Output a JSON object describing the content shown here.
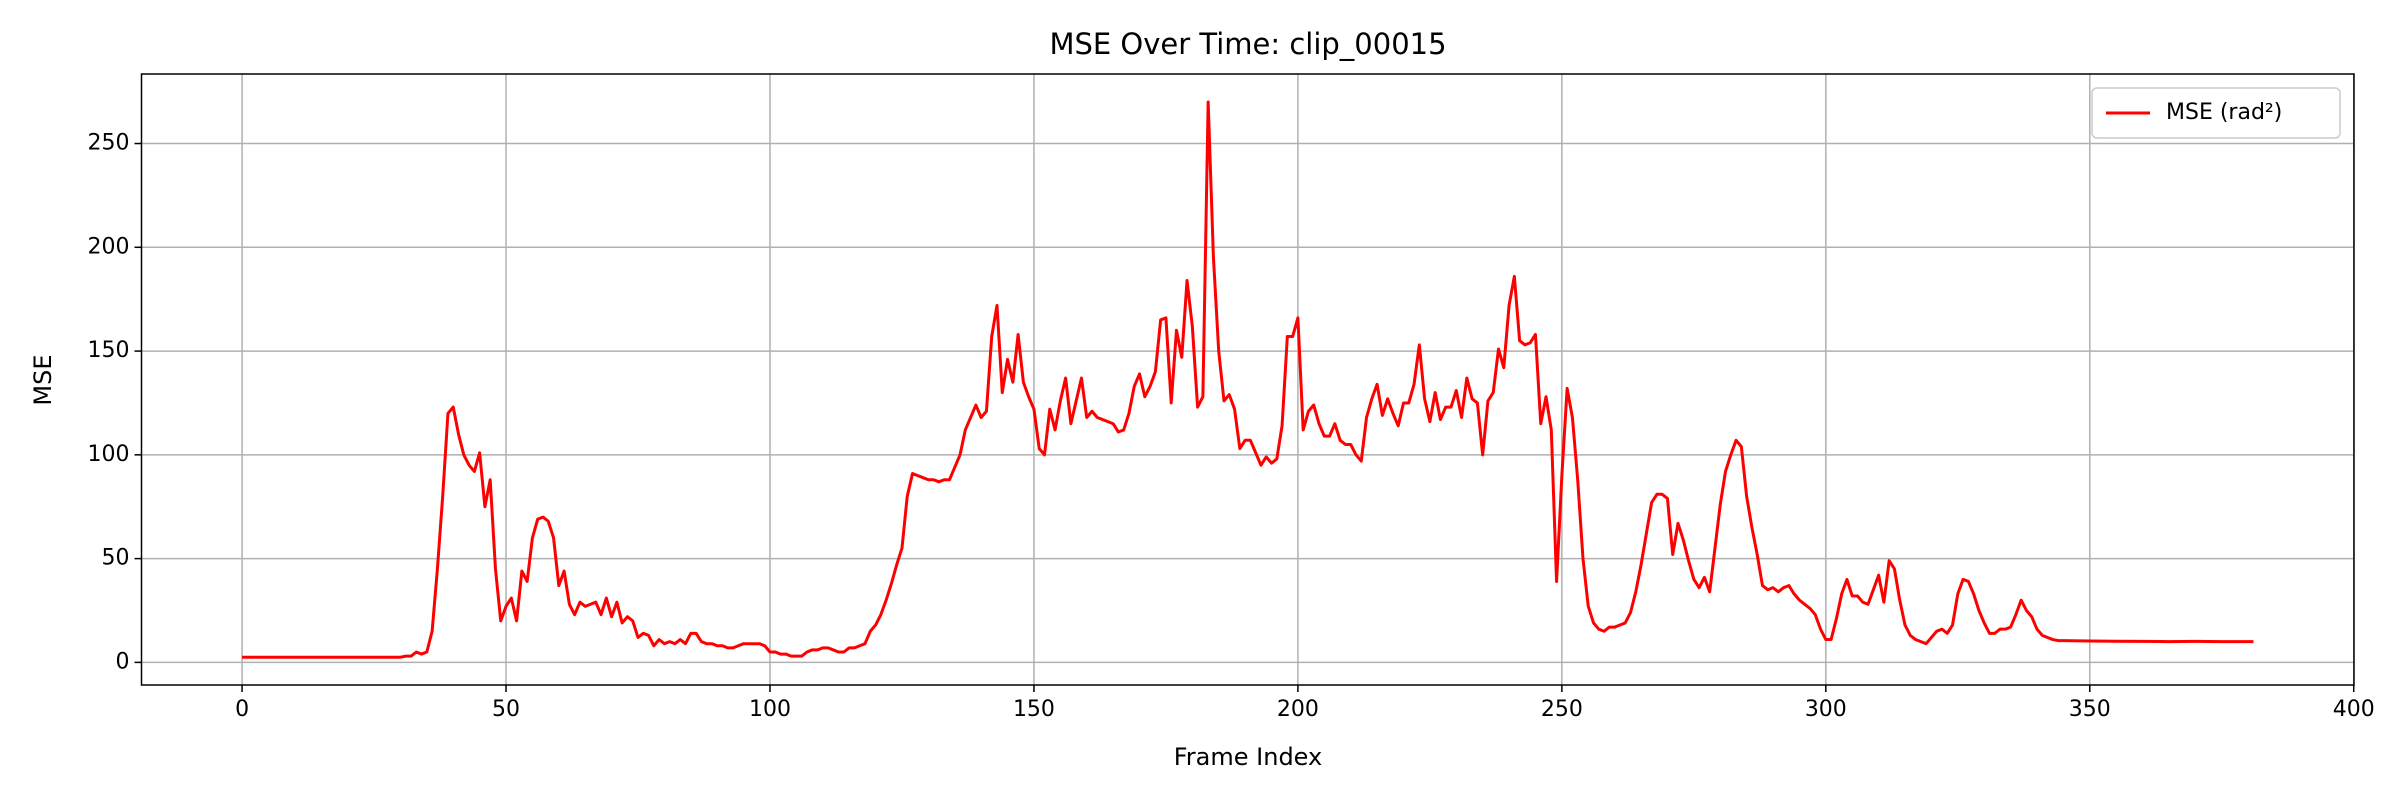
{
  "chart_data": {
    "type": "line",
    "title": "MSE Over Time: clip_00015",
    "x_label": "Frame Index",
    "y_label": "MSE",
    "x": [
      0,
      30,
      31,
      32,
      33,
      34,
      35,
      36,
      37,
      38,
      39,
      40,
      41,
      42,
      43,
      44,
      45,
      46,
      47,
      48,
      49,
      50,
      51,
      52,
      53,
      54,
      55,
      56,
      57,
      58,
      59,
      60,
      61,
      62,
      63,
      64,
      65,
      66,
      67,
      68,
      69,
      70,
      71,
      72,
      73,
      74,
      75,
      76,
      77,
      78,
      79,
      80,
      81,
      82,
      83,
      84,
      85,
      86,
      87,
      88,
      89,
      90,
      91,
      92,
      93,
      94,
      95,
      96,
      97,
      98,
      99,
      100,
      101,
      102,
      103,
      104,
      105,
      106,
      107,
      108,
      109,
      110,
      111,
      112,
      113,
      114,
      115,
      116,
      117,
      118,
      119,
      120,
      121,
      122,
      123,
      124,
      125,
      126,
      127,
      128,
      129,
      130,
      131,
      132,
      133,
      134,
      135,
      136,
      137,
      138,
      139,
      140,
      141,
      142,
      143,
      144,
      145,
      146,
      147,
      148,
      149,
      150,
      151,
      152,
      153,
      154,
      155,
      156,
      157,
      158,
      159,
      160,
      161,
      162,
      163,
      164,
      165,
      166,
      167,
      168,
      169,
      170,
      171,
      172,
      173,
      174,
      175,
      176,
      177,
      178,
      179,
      180,
      181,
      182,
      183,
      184,
      185,
      186,
      187,
      188,
      189,
      190,
      191,
      192,
      193,
      194,
      195,
      196,
      197,
      198,
      199,
      200,
      201,
      202,
      203,
      204,
      205,
      206,
      207,
      208,
      209,
      210,
      211,
      212,
      213,
      214,
      215,
      216,
      217,
      218,
      219,
      220,
      221,
      222,
      223,
      224,
      225,
      226,
      227,
      228,
      229,
      230,
      231,
      232,
      233,
      234,
      235,
      236,
      237,
      238,
      239,
      240,
      241,
      242,
      243,
      244,
      245,
      246,
      247,
      248,
      249,
      250,
      251,
      252,
      253,
      254,
      255,
      256,
      257,
      258,
      259,
      260,
      261,
      262,
      263,
      264,
      265,
      266,
      267,
      268,
      269,
      270,
      271,
      272,
      273,
      274,
      275,
      276,
      277,
      278,
      279,
      280,
      281,
      282,
      283,
      284,
      285,
      286,
      287,
      288,
      289,
      290,
      291,
      292,
      293,
      294,
      295,
      296,
      297,
      298,
      299,
      300,
      301,
      302,
      303,
      304,
      305,
      306,
      307,
      308,
      309,
      310,
      311,
      312,
      313,
      314,
      315,
      316,
      317,
      318,
      319,
      320,
      321,
      322,
      323,
      324,
      325,
      326,
      327,
      328,
      329,
      330,
      331,
      332,
      333,
      334,
      335,
      336,
      337,
      338,
      339,
      340,
      341,
      342,
      343,
      344,
      345,
      350,
      355,
      360,
      365,
      370,
      375,
      381
    ],
    "series": [
      {
        "name": "MSE (rad²)",
        "color": "#ff0000",
        "values": [
          2.5,
          2.5,
          3,
          3,
          5,
          4,
          5,
          15,
          45,
          80,
          120,
          123,
          110,
          100,
          95,
          92,
          101,
          75,
          88,
          45,
          20,
          27,
          31,
          20,
          44,
          39,
          60,
          69,
          70,
          68,
          60,
          37,
          44,
          28,
          23,
          29,
          27,
          28,
          29,
          23,
          31,
          22,
          29,
          19,
          22,
          20,
          12,
          14,
          13,
          8,
          11,
          9,
          10,
          9,
          11,
          9,
          14,
          14,
          10,
          9,
          9,
          8,
          8,
          7,
          7,
          8,
          9,
          9,
          9,
          9,
          8,
          5,
          5,
          4,
          4,
          3,
          3,
          3,
          5,
          6,
          6,
          7,
          7,
          6,
          5,
          5,
          7,
          7,
          8,
          9,
          15,
          18,
          23,
          30,
          38,
          47,
          55,
          80,
          91,
          90,
          89,
          88,
          88,
          87,
          88,
          88,
          94,
          100,
          112,
          118,
          124,
          118,
          121,
          157,
          172,
          130,
          146,
          135,
          158,
          135,
          128,
          122,
          103,
          100,
          122,
          112,
          126,
          137,
          115,
          126,
          137,
          118,
          121,
          118,
          117,
          116,
          115,
          111,
          112,
          120,
          133,
          139,
          128,
          133,
          140,
          165,
          166,
          125,
          160,
          147,
          184,
          162,
          123,
          128,
          270,
          195,
          150,
          126,
          129,
          122,
          103,
          107,
          107,
          101,
          95,
          99,
          96,
          98,
          114,
          157,
          157,
          166,
          112,
          121,
          124,
          115,
          109,
          109,
          115,
          107,
          105,
          105,
          100,
          97,
          118,
          127,
          134,
          119,
          127,
          120,
          114,
          125,
          125,
          134,
          153,
          127,
          116,
          130,
          117,
          123,
          123,
          131,
          118,
          137,
          127,
          125,
          100,
          126,
          130,
          151,
          142,
          172,
          186,
          155,
          153,
          154,
          158,
          115,
          128,
          112,
          39,
          90,
          132,
          118,
          88,
          50,
          27,
          19,
          16,
          15,
          17,
          17,
          18,
          19,
          24,
          34,
          47,
          62,
          77,
          81,
          81,
          79,
          52,
          67,
          59,
          49,
          40,
          36,
          41,
          34,
          55,
          76,
          92,
          100,
          107,
          104,
          80,
          65,
          52,
          37,
          35,
          36,
          34,
          36,
          37,
          33,
          30,
          28,
          26,
          23,
          16,
          11,
          11,
          21,
          33,
          40,
          32,
          32,
          29,
          28,
          35,
          42,
          29,
          49,
          45,
          30,
          18,
          13,
          11,
          10,
          9,
          12,
          15,
          16,
          14,
          18,
          33,
          40,
          39,
          33,
          25,
          19,
          14,
          14,
          16,
          16,
          17,
          23,
          30,
          25,
          22,
          16,
          13,
          12,
          11,
          10.5,
          10.5,
          10.3,
          10.2,
          10.1,
          10,
          10.1,
          10,
          10
        ]
      }
    ],
    "xlim": [
      -19.05,
      400.05
    ],
    "ylim": [
      -10.9,
      283.5
    ],
    "xticks": [
      0,
      50,
      100,
      150,
      200,
      250,
      300,
      350,
      400
    ],
    "yticks": [
      0,
      50,
      100,
      150,
      200,
      250
    ],
    "grid": true,
    "legend": "upper right"
  }
}
